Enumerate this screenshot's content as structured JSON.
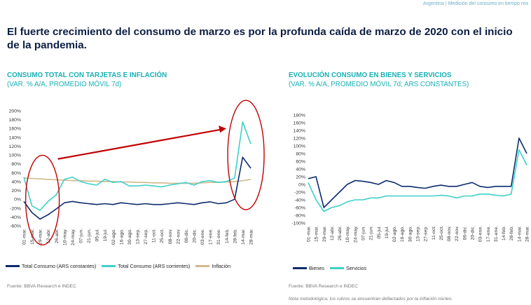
{
  "header": {
    "tag": "Argentina | Medición del consumo en tiempo rea"
  },
  "headline": "El fuerte crecimiento del consumo de marzo es por la profunda caída de marzo de 2020 con el inicio de la pandemia.",
  "footer": {
    "source_left": "Fuente: BBVA Research e INDEC",
    "source_right": "Fuente: BBVA Research e INDEC",
    "note": "Nota metodológica: los rubros se encuentran deflactados por la inflación núcleo."
  },
  "colors": {
    "title": "#17b1b5",
    "navy": "#0d2c6e",
    "turquoise": "#3fd0c9",
    "tan": "#d2b98a",
    "annotation": "#c00000"
  },
  "chart_data": [
    {
      "type": "line",
      "title": "CONSUMO TOTAL CON TARJETAS E INFLACIÓN",
      "subtitle": "(VAR. % A/A, PROMEDIO MÓVIL 7d)",
      "xlabel": "",
      "ylabel": "",
      "ylim": [
        -60,
        200
      ],
      "yticks": [
        "200%",
        "180%",
        "160%",
        "140%",
        "120%",
        "100%",
        "80%",
        "60%",
        "40%",
        "20%",
        "0%",
        "-20%",
        "-40%",
        "-60%"
      ],
      "x": [
        "01-mar.",
        "15-mar.",
        "29-mar.",
        "12-abr.",
        "26-abr.",
        "10-may.",
        "24-may.",
        "07-jun.",
        "21-jun.",
        "05-jul.",
        "19-jul.",
        "02-ago.",
        "16-ago.",
        "30-ago.",
        "13-sep.",
        "27-sep.",
        "11-oct.",
        "25-oct.",
        "08-nov.",
        "22-nov.",
        "06-dic.",
        "20-dic.",
        "03-ene.",
        "17-ene.",
        "31-ene.",
        "14-feb.",
        "28-feb.",
        "14-mar.",
        "28-mar."
      ],
      "grid": false,
      "legend": "bottom",
      "annotations": [
        "circle around March 2020 drop",
        "circle around March 2021 surge",
        "arrow from the first circle to the second"
      ],
      "series": [
        {
          "name": "Total Consumo (ARS constantes)",
          "color": "#0d2c6e",
          "values": [
            -5,
            -30,
            -45,
            -35,
            -22,
            -8,
            -5,
            -8,
            -10,
            -12,
            -10,
            -12,
            -8,
            -10,
            -12,
            -10,
            -12,
            -12,
            -10,
            -8,
            -10,
            -12,
            -8,
            -6,
            -10,
            -8,
            0,
            95,
            70
          ]
        },
        {
          "name": "Total Consumo (ARS corrientes)",
          "color": "#3fd0c9",
          "values": [
            50,
            -15,
            -25,
            -5,
            10,
            45,
            50,
            40,
            35,
            32,
            45,
            38,
            40,
            30,
            30,
            32,
            30,
            28,
            32,
            35,
            38,
            32,
            40,
            42,
            38,
            40,
            48,
            175,
            125
          ]
        },
        {
          "name": "Inflación",
          "color": "#d2b98a",
          "values": [
            48,
            47,
            46,
            45,
            44,
            43,
            42,
            42,
            41,
            41,
            40,
            40,
            39,
            39,
            38,
            38,
            37,
            37,
            36,
            36,
            36,
            36,
            37,
            38,
            38,
            39,
            40,
            42,
            45
          ]
        }
      ]
    },
    {
      "type": "line",
      "title": "EVOLUCIÓN CONSUMO EN BIENES Y SERVICIOS",
      "subtitle": "(VAR. % A/A, PROMEDIO MÓVIL 7d; ARS CONSTANTES)",
      "xlabel": "",
      "ylabel": "",
      "ylim": [
        -100,
        180
      ],
      "yticks": [
        "180%",
        "160%",
        "140%",
        "120%",
        "100%",
        "80%",
        "60%",
        "40%",
        "20%",
        "0%",
        "-20%",
        "-40%",
        "-60%",
        "-80%",
        "-100%"
      ],
      "x": [
        "01-mar.",
        "15-mar.",
        "29-mar.",
        "12-abr.",
        "26-abr.",
        "10-may.",
        "24-may.",
        "07-jun.",
        "21-jun.",
        "05-jul.",
        "19-jul.",
        "02-ago.",
        "16-ago.",
        "30-ago.",
        "13-sep.",
        "27-sep.",
        "11-oct.",
        "25-oct.",
        "08-nov.",
        "22-nov.",
        "06-dic.",
        "20-dic.",
        "03-ene.",
        "17-ene.",
        "31-ene.",
        "14-feb.",
        "28-feb.",
        "14-mar.",
        "28-mar."
      ],
      "grid": false,
      "legend": "bottom",
      "series": [
        {
          "name": "Bienes",
          "color": "#0d2c6e",
          "values": [
            15,
            20,
            -60,
            -40,
            -20,
            0,
            10,
            8,
            5,
            0,
            10,
            5,
            -5,
            -5,
            -8,
            -10,
            -5,
            -2,
            -5,
            -5,
            0,
            5,
            -5,
            -8,
            -5,
            -5,
            -5,
            120,
            80
          ]
        },
        {
          "name": "Servicios",
          "color": "#3fd0c9",
          "values": [
            5,
            -40,
            -70,
            -60,
            -55,
            -45,
            -40,
            -40,
            -35,
            -35,
            -30,
            -30,
            -30,
            -30,
            -30,
            -30,
            -30,
            -28,
            -30,
            -35,
            -30,
            -30,
            -25,
            -25,
            -28,
            -30,
            -25,
            90,
            50
          ]
        }
      ]
    }
  ]
}
